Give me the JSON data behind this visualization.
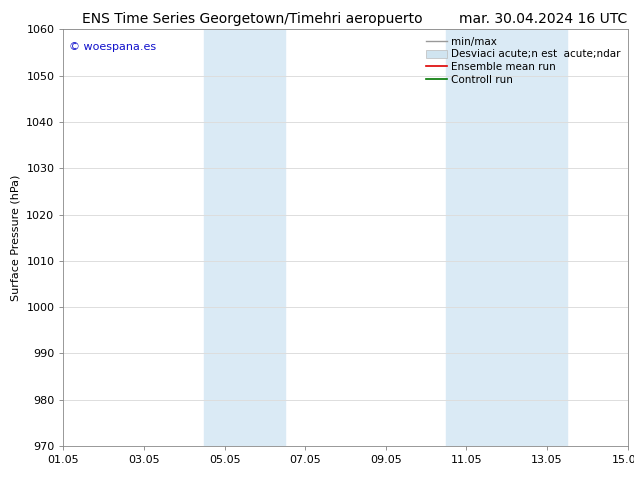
{
  "title_left": "ENS Time Series Georgetown/Timehri aeropuerto",
  "title_right": "mar. 30.04.2024 16 UTC",
  "ylabel": "Surface Pressure (hPa)",
  "ylim": [
    970,
    1060
  ],
  "yticks": [
    970,
    980,
    990,
    1000,
    1010,
    1020,
    1030,
    1040,
    1050,
    1060
  ],
  "xlim_start": 0,
  "xlim_end": 14,
  "xtick_labels": [
    "01.05",
    "03.05",
    "05.05",
    "07.05",
    "09.05",
    "11.05",
    "13.05",
    "15.05"
  ],
  "xtick_positions": [
    0,
    2,
    4,
    6,
    8,
    10,
    12,
    14
  ],
  "shaded_bands": [
    {
      "xmin": 3.5,
      "xmax": 5.5,
      "color": "#daeaf5"
    },
    {
      "xmin": 9.5,
      "xmax": 12.5,
      "color": "#daeaf5"
    }
  ],
  "watermark_text": "© woespana.es",
  "watermark_color": "#1111cc",
  "legend_labels": [
    "min/max",
    "Desviaci acute;n est  acute;ndar",
    "Ensemble mean run",
    "Controll run"
  ],
  "legend_colors": [
    "#aaaaaa",
    "#ccddee",
    "#dd0000",
    "#007700"
  ],
  "bg_color": "#ffffff",
  "plot_bg": "#ffffff",
  "grid_color": "#dddddd",
  "title_fontsize": 10,
  "axis_label_fontsize": 8,
  "tick_fontsize": 8,
  "legend_fontsize": 7.5,
  "watermark_fontsize": 8
}
